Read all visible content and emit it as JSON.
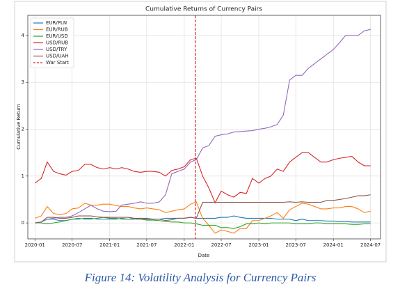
{
  "chart_data": {
    "type": "line",
    "title": "Cumulative Returns of Currency Pairs",
    "x_label": "Date",
    "y_label": "Cumulative Return",
    "x": [
      "2020-01",
      "2020-02",
      "2020-03",
      "2020-04",
      "2020-05",
      "2020-06",
      "2020-07",
      "2020-08",
      "2020-09",
      "2020-10",
      "2020-11",
      "2020-12",
      "2021-01",
      "2021-02",
      "2021-03",
      "2021-04",
      "2021-05",
      "2021-06",
      "2021-07",
      "2021-08",
      "2021-09",
      "2021-10",
      "2021-11",
      "2021-12",
      "2022-01",
      "2022-02",
      "2022-03",
      "2022-04",
      "2022-05",
      "2022-06",
      "2022-07",
      "2022-08",
      "2022-09",
      "2022-10",
      "2022-11",
      "2022-12",
      "2023-01",
      "2023-02",
      "2023-03",
      "2023-04",
      "2023-05",
      "2023-06",
      "2023-07",
      "2023-08",
      "2023-09",
      "2023-10",
      "2023-11",
      "2023-12",
      "2024-01",
      "2024-02",
      "2024-03",
      "2024-04",
      "2024-05",
      "2024-06",
      "2024-07"
    ],
    "series": [
      {
        "name": "EUR/PLN",
        "color": "#1f77b4",
        "values": [
          0,
          0.02,
          0.08,
          0.08,
          0.05,
          0.05,
          0.08,
          0.08,
          0.1,
          0.1,
          0.08,
          0.08,
          0.08,
          0.08,
          0.1,
          0.08,
          0.08,
          0.08,
          0.08,
          0.08,
          0.08,
          0.1,
          0.1,
          0.1,
          0.1,
          0.12,
          0.1,
          0.1,
          0.1,
          0.1,
          0.12,
          0.12,
          0.15,
          0.12,
          0.1,
          0.1,
          0.1,
          0.1,
          0.1,
          0.08,
          0.08,
          0.08,
          0.05,
          0.08,
          0.05,
          0.05,
          0.05,
          0.04,
          0.04,
          0.03,
          0.03,
          0.02,
          0.02,
          0.02,
          0.02
        ]
      },
      {
        "name": "EUR/RUB",
        "color": "#ff7f0e",
        "values": [
          0.1,
          0.15,
          0.35,
          0.2,
          0.18,
          0.2,
          0.3,
          0.32,
          0.42,
          0.38,
          0.38,
          0.4,
          0.4,
          0.37,
          0.35,
          0.35,
          0.32,
          0.3,
          0.32,
          0.3,
          0.28,
          0.22,
          0.25,
          0.28,
          0.3,
          0.4,
          0.45,
          0.1,
          -0.05,
          -0.22,
          -0.15,
          -0.18,
          -0.22,
          -0.12,
          -0.12,
          0.05,
          0.05,
          0.1,
          0.15,
          0.22,
          0.1,
          0.28,
          0.35,
          0.42,
          0.4,
          0.35,
          0.3,
          0.3,
          0.32,
          0.32,
          0.35,
          0.35,
          0.3,
          0.22,
          0.25
        ]
      },
      {
        "name": "EUR/USD",
        "color": "#2ca02c",
        "values": [
          0,
          0,
          -0.02,
          0,
          0.02,
          0.05,
          0.08,
          0.1,
          0.08,
          0.08,
          0.1,
          0.12,
          0.1,
          0.1,
          0.08,
          0.08,
          0.1,
          0.08,
          0.06,
          0.06,
          0.05,
          0.03,
          0.02,
          0.02,
          0,
          0,
          -0.02,
          -0.05,
          -0.05,
          -0.05,
          -0.1,
          -0.1,
          -0.12,
          -0.08,
          -0.02,
          -0.02,
          0,
          -0.02,
          0,
          0,
          0,
          0,
          -0.02,
          -0.02,
          -0.02,
          0,
          0,
          -0.02,
          -0.02,
          -0.02,
          -0.02,
          -0.03,
          -0.03,
          -0.02,
          -0.02
        ]
      },
      {
        "name": "USD/RUB",
        "color": "#d62728",
        "values": [
          0.85,
          0.95,
          1.3,
          1.1,
          1.05,
          1.02,
          1.1,
          1.12,
          1.25,
          1.25,
          1.18,
          1.15,
          1.18,
          1.15,
          1.18,
          1.15,
          1.1,
          1.08,
          1.1,
          1.1,
          1.08,
          1.0,
          1.12,
          1.15,
          1.2,
          1.35,
          1.38,
          1.0,
          0.75,
          0.43,
          0.68,
          0.6,
          0.55,
          0.65,
          0.63,
          0.95,
          0.85,
          0.95,
          1.0,
          1.15,
          1.1,
          1.3,
          1.4,
          1.5,
          1.5,
          1.4,
          1.3,
          1.3,
          1.35,
          1.38,
          1.4,
          1.42,
          1.3,
          1.22,
          1.22
        ]
      },
      {
        "name": "USD/TRY",
        "color": "#9467bd",
        "values": [
          0,
          0.02,
          0.08,
          0.1,
          0.12,
          0.12,
          0.15,
          0.22,
          0.3,
          0.38,
          0.3,
          0.25,
          0.24,
          0.25,
          0.38,
          0.4,
          0.42,
          0.45,
          0.42,
          0.42,
          0.45,
          0.6,
          1.05,
          1.1,
          1.15,
          1.3,
          1.35,
          1.6,
          1.65,
          1.85,
          1.88,
          1.9,
          1.94,
          1.95,
          1.96,
          1.97,
          2.0,
          2.02,
          2.05,
          2.1,
          2.3,
          3.05,
          3.15,
          3.15,
          3.3,
          3.4,
          3.5,
          3.6,
          3.7,
          3.85,
          4.0,
          4.0,
          4.0,
          4.1,
          4.13
        ]
      },
      {
        "name": "USD/UAH",
        "color": "#8c564b",
        "values": [
          0,
          0.02,
          0.12,
          0.12,
          0.1,
          0.1,
          0.12,
          0.15,
          0.15,
          0.15,
          0.13,
          0.12,
          0.12,
          0.12,
          0.12,
          0.12,
          0.1,
          0.1,
          0.1,
          0.08,
          0.08,
          0.05,
          0.07,
          0.1,
          0.1,
          0.12,
          0.1,
          0.44,
          0.44,
          0.44,
          0.44,
          0.44,
          0.44,
          0.44,
          0.44,
          0.44,
          0.44,
          0.44,
          0.44,
          0.44,
          0.44,
          0.45,
          0.44,
          0.45,
          0.44,
          0.44,
          0.44,
          0.48,
          0.48,
          0.5,
          0.52,
          0.55,
          0.58,
          0.58,
          0.6
        ]
      }
    ],
    "vline": {
      "name": "War Start",
      "x": "2022-02-24",
      "color": "#d62728"
    },
    "xlim": [
      "2019-11-27",
      "2024-08-19"
    ],
    "xticks": [
      "2020-01",
      "2020-07",
      "2021-01",
      "2021-07",
      "2022-01",
      "2022-07",
      "2023-01",
      "2023-07",
      "2024-01",
      "2024-07"
    ],
    "ylim": [
      -0.34,
      4.43
    ],
    "yticks": [
      0,
      1,
      2,
      3,
      4
    ],
    "grid": true,
    "legend": "upper left"
  },
  "caption": "Figure 14: Volatility Analysis for Currency Pairs"
}
